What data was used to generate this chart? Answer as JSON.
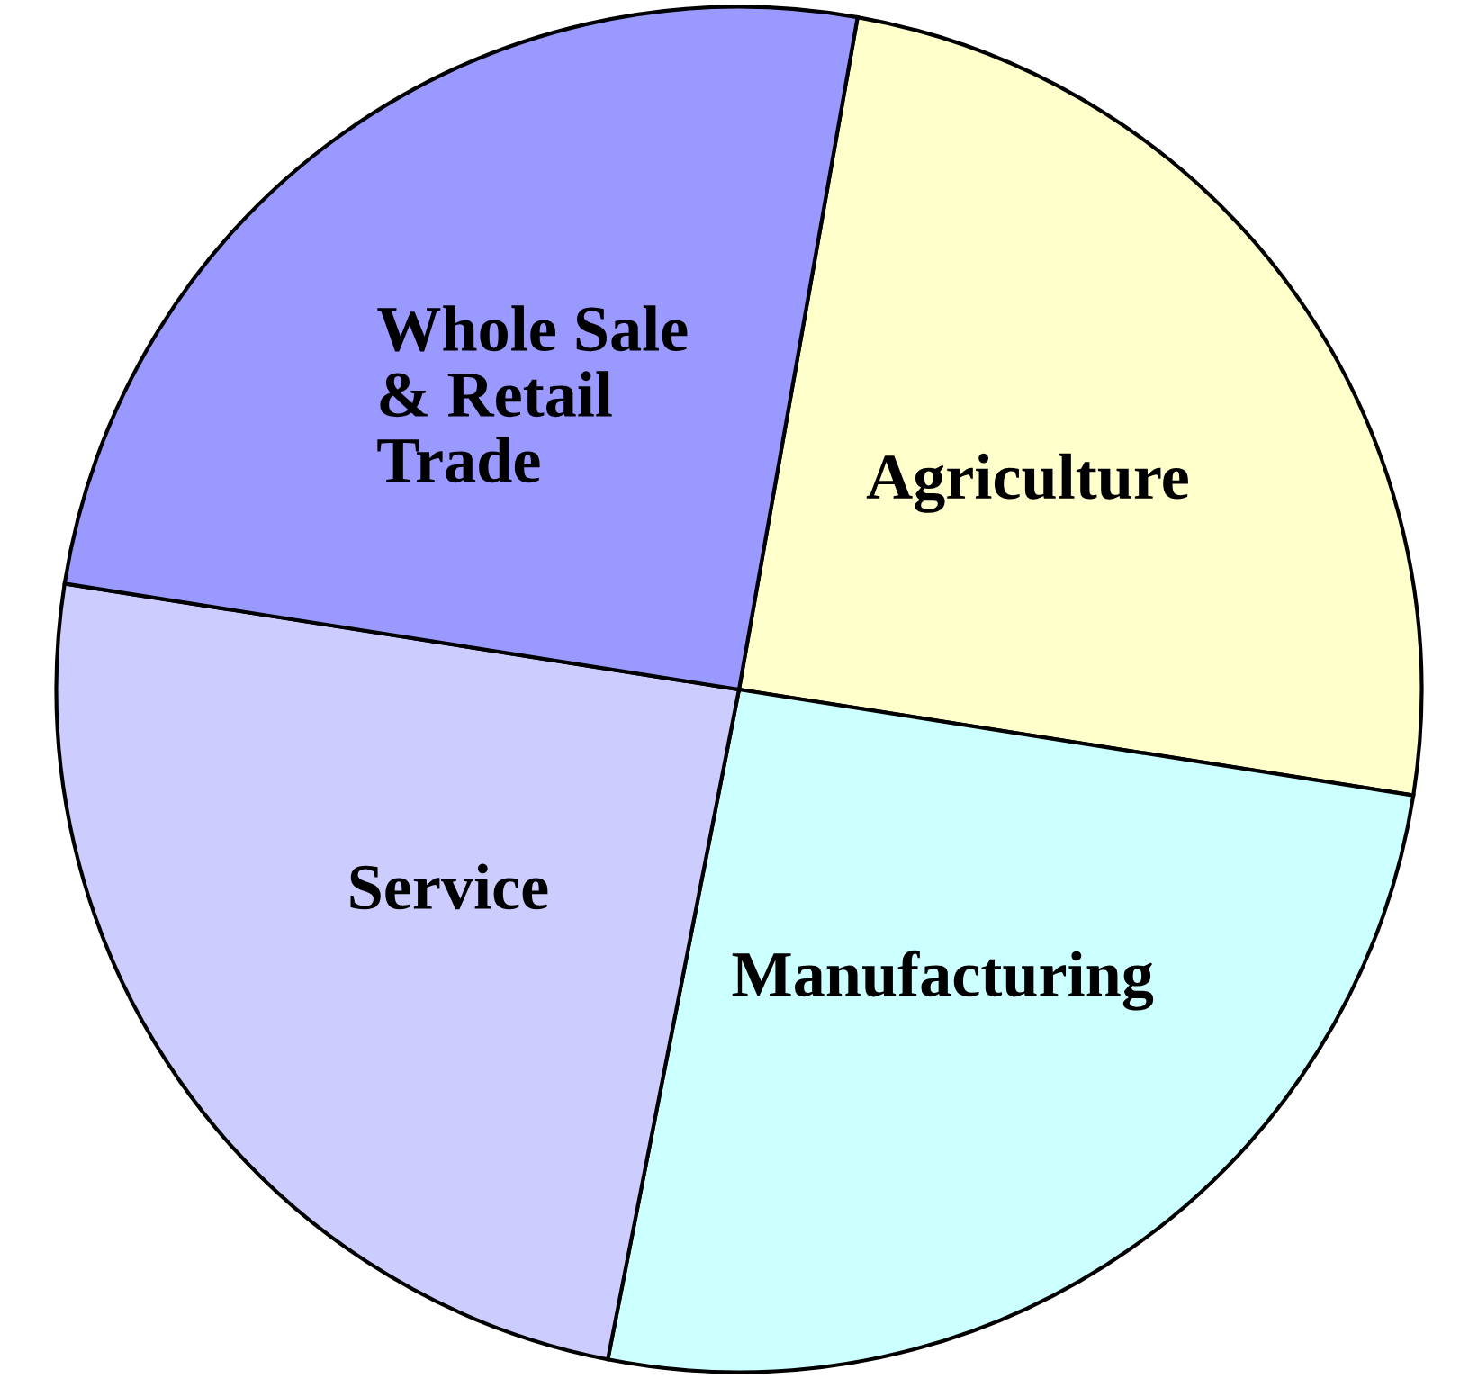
{
  "chart_data": {
    "type": "pie",
    "categories": [
      "Agriculture",
      "Manufacturing",
      "Service",
      "Whole Sale\n& Retail\nTrade"
    ],
    "values": [
      24.7,
      25.6,
      24.4,
      25.3
    ],
    "colors": [
      "#ffffcc",
      "#ccffff",
      "#ccccff",
      "#9999ff"
    ]
  }
}
